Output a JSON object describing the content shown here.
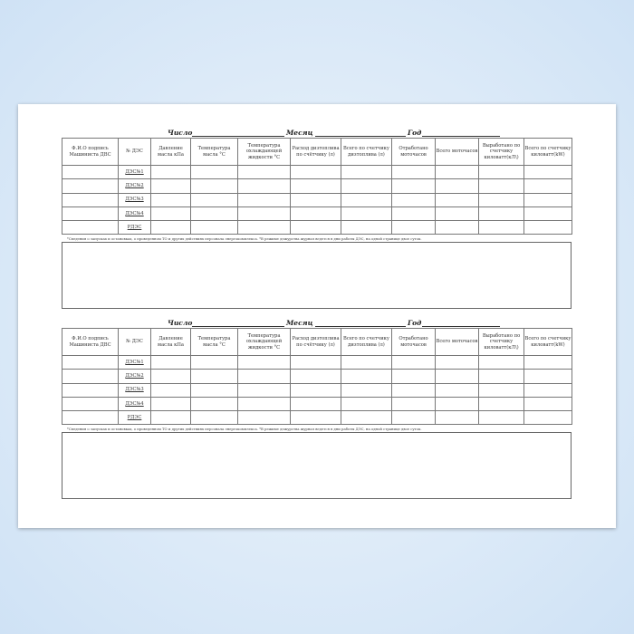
{
  "header": {
    "day_label": "Число",
    "month_label": "Месяц",
    "year_label": "Год"
  },
  "columns": [
    "Ф.И.О подпись Машиниста ДВС",
    "№ ДЭС",
    "Давление масла кПа",
    "Температура масла °С",
    "Температура охлаждающей жидкости °С",
    "Расход дизтоплива по счётчику (л)",
    "Всего по счетчику дизтоплива (л)",
    "Отработано моточасов",
    "Всего моточасов",
    "Выработано по счетчику киловатт(кЛ\\)",
    "Всего по счетчику киловатт(kW)"
  ],
  "units": [
    "ДЭС№1",
    "ДЭС№2",
    "ДЭС№3",
    "ДЭС№4",
    "РДЭС"
  ],
  "note": "*Сведения о запусках и остановках, о проведенном ТО и других действиях персонала энергокомплекса. *В режиме дежурства журнал ведется в дни работы ДЭС, на одной странице двое суток."
}
